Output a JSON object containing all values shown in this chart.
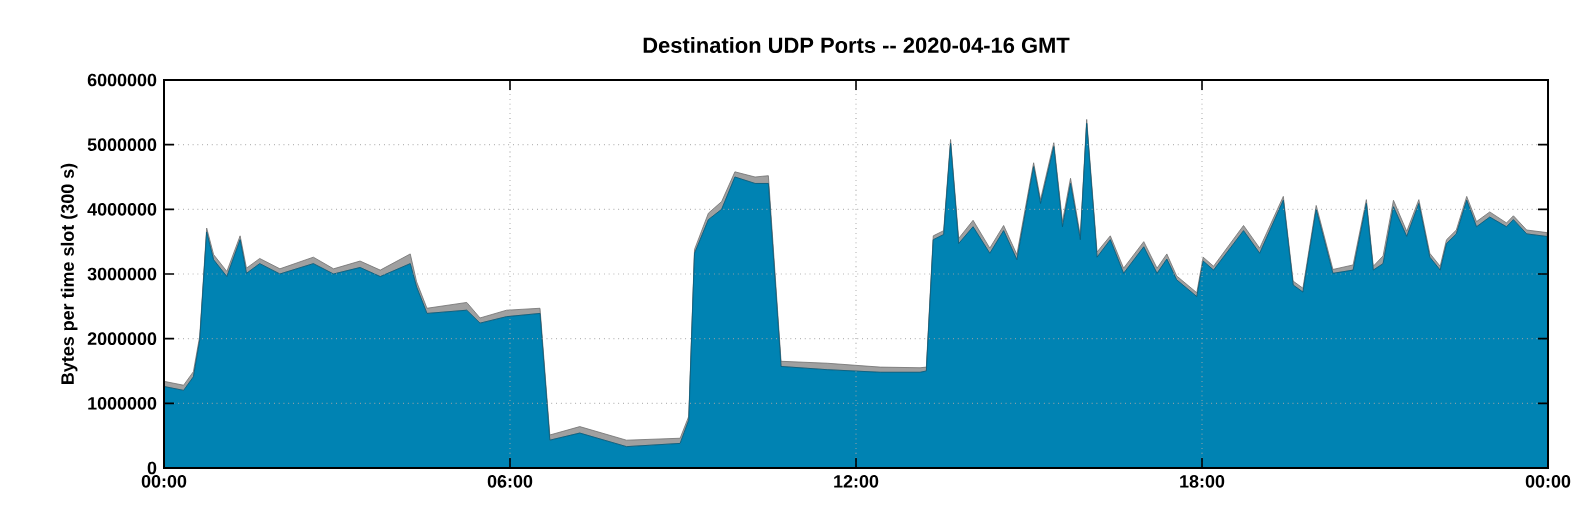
{
  "chart_data": {
    "type": "area",
    "stacked": true,
    "title": "Destination UDP Ports -- 2020-04-16 GMT",
    "ylabel": "Bytes per time slot (300 s)",
    "x": [
      0,
      0.34,
      0.51,
      0.62,
      0.74,
      0.86,
      1.09,
      1.32,
      1.43,
      1.66,
      2.01,
      2.59,
      2.94,
      3.4,
      3.75,
      4.27,
      4.38,
      4.56,
      5.25,
      5.48,
      5.94,
      6.52,
      6.69,
      7.21,
      8.02,
      8.95,
      9.1,
      9.2,
      9.44,
      9.67,
      9.9,
      10.25,
      10.48,
      10.7,
      11.5,
      12.42,
      13.11,
      13.22,
      13.34,
      13.52,
      13.64,
      13.78,
      14.03,
      14.32,
      14.56,
      14.79,
      15.08,
      15.2,
      15.43,
      15.58,
      15.72,
      15.89,
      16.0,
      16.18,
      16.41,
      16.64,
      16.99,
      17.22,
      17.39,
      17.56,
      17.91,
      18.02,
      18.2,
      18.72,
      19.0,
      19.41,
      19.58,
      19.75,
      19.98,
      20.27,
      20.62,
      20.85,
      20.97,
      21.14,
      21.32,
      21.55,
      21.76,
      21.95,
      22.13,
      22.24,
      22.41,
      22.59,
      22.76,
      22.99,
      23.28,
      23.4,
      23.63,
      23.98,
      24
    ],
    "series": [
      {
        "color": "#0083b3",
        "values": [
          1260000,
          1200000,
          1410000,
          1980000,
          3650000,
          3220000,
          2960000,
          3530000,
          3010000,
          3160000,
          3000000,
          3160000,
          3000000,
          3100000,
          2960000,
          3160000,
          2800000,
          2390000,
          2440000,
          2240000,
          2340000,
          2390000,
          430000,
          540000,
          330000,
          380000,
          740000,
          3320000,
          3840000,
          4000000,
          4500000,
          4400000,
          4400000,
          1570000,
          1520000,
          1480000,
          1480000,
          1500000,
          3530000,
          3610000,
          5020000,
          3470000,
          3730000,
          3320000,
          3670000,
          3220000,
          4660000,
          4090000,
          4970000,
          3730000,
          4400000,
          3530000,
          5330000,
          3260000,
          3530000,
          3010000,
          3420000,
          3010000,
          3230000,
          2910000,
          2650000,
          3200000,
          3060000,
          3670000,
          3320000,
          4140000,
          2830000,
          2720000,
          4000000,
          3010000,
          3060000,
          4090000,
          3060000,
          3160000,
          4040000,
          3580000,
          4090000,
          3260000,
          3060000,
          3470000,
          3620000,
          4140000,
          3730000,
          3880000,
          3730000,
          3840000,
          3620000,
          3580000,
          2830000
        ]
      },
      {
        "color": "#a0a0a0",
        "values": [
          80000,
          80000,
          80000,
          60000,
          60000,
          80000,
          80000,
          60000,
          80000,
          80000,
          80000,
          100000,
          80000,
          100000,
          100000,
          150000,
          80000,
          80000,
          120000,
          80000,
          100000,
          80000,
          80000,
          100000,
          100000,
          80000,
          60000,
          60000,
          100000,
          120000,
          80000,
          100000,
          120000,
          80000,
          100000,
          80000,
          70000,
          60000,
          60000,
          60000,
          60000,
          80000,
          100000,
          80000,
          80000,
          80000,
          60000,
          60000,
          60000,
          80000,
          80000,
          60000,
          60000,
          80000,
          60000,
          80000,
          80000,
          80000,
          80000,
          60000,
          60000,
          60000,
          60000,
          80000,
          80000,
          60000,
          60000,
          60000,
          60000,
          60000,
          80000,
          60000,
          60000,
          120000,
          100000,
          80000,
          60000,
          60000,
          60000,
          60000,
          60000,
          60000,
          80000,
          80000,
          60000,
          60000,
          60000,
          60000,
          60000
        ]
      }
    ],
    "xlim": [
      0,
      24
    ],
    "xticks": [
      {
        "value": 0,
        "label": "00:00"
      },
      {
        "value": 6,
        "label": "06:00"
      },
      {
        "value": 12,
        "label": "12:00"
      },
      {
        "value": 18,
        "label": "18:00"
      },
      {
        "value": 24,
        "label": "00:00"
      }
    ],
    "ylim": [
      0,
      6000000
    ],
    "yticks": [
      0,
      1000000,
      2000000,
      3000000,
      4000000,
      5000000,
      6000000
    ],
    "grid": true
  }
}
